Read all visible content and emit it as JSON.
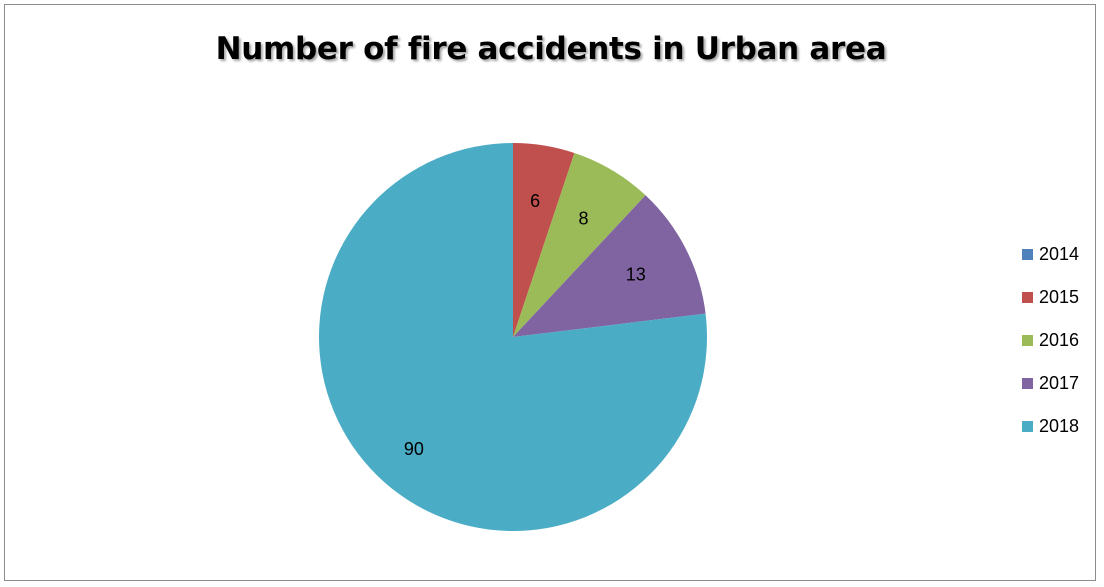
{
  "chart_data": {
    "type": "pie",
    "title": "Number of fire accidents in Urban area",
    "categories": [
      "2014",
      "2015",
      "2016",
      "2017",
      "2018"
    ],
    "values": [
      0,
      6,
      8,
      13,
      90
    ],
    "data_labels": [
      "",
      "6",
      "8",
      "13",
      "90"
    ],
    "colors": [
      "#4f81bd",
      "#c0504d",
      "#9bbb59",
      "#8064a2",
      "#4bacc6"
    ],
    "legend_position": "right",
    "start_angle": "12 o'clock",
    "direction": "clockwise"
  }
}
